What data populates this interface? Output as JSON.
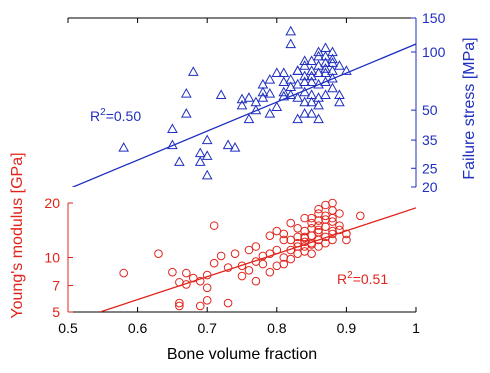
{
  "chart_data": [
    {
      "type": "scatter",
      "name": "failure-stress",
      "xlabel": "",
      "ylabel": "Failure stress [MPa]",
      "xlim": [
        0.5,
        1.0
      ],
      "ylim": [
        20,
        150
      ],
      "yscale": "log",
      "yticks": [
        20,
        25,
        35,
        50,
        100,
        150
      ],
      "axis_side": "right",
      "color": "#1f2fbf",
      "marker": "triangle",
      "annotation": {
        "prefix": "R",
        "sup": "2",
        "suffix": "=0.50"
      },
      "fit": {
        "x": [
          0.5,
          1.0
        ],
        "y": [
          19.5,
          110
        ]
      },
      "points": [
        [
          0.58,
          32
        ],
        [
          0.65,
          33
        ],
        [
          0.65,
          40
        ],
        [
          0.66,
          27
        ],
        [
          0.67,
          61
        ],
        [
          0.67,
          48
        ],
        [
          0.68,
          79
        ],
        [
          0.69,
          30
        ],
        [
          0.69,
          27
        ],
        [
          0.7,
          35
        ],
        [
          0.7,
          23
        ],
        [
          0.7,
          29
        ],
        [
          0.72,
          60
        ],
        [
          0.73,
          33
        ],
        [
          0.74,
          32
        ],
        [
          0.75,
          57
        ],
        [
          0.75,
          53
        ],
        [
          0.76,
          45
        ],
        [
          0.76,
          58
        ],
        [
          0.77,
          50
        ],
        [
          0.77,
          55
        ],
        [
          0.78,
          58
        ],
        [
          0.78,
          62
        ],
        [
          0.78,
          68
        ],
        [
          0.79,
          48
        ],
        [
          0.79,
          61
        ],
        [
          0.79,
          72
        ],
        [
          0.8,
          78
        ],
        [
          0.8,
          52
        ],
        [
          0.81,
          62
        ],
        [
          0.81,
          70
        ],
        [
          0.81,
          59
        ],
        [
          0.81,
          78
        ],
        [
          0.82,
          66
        ],
        [
          0.82,
          72
        ],
        [
          0.82,
          128
        ],
        [
          0.82,
          110
        ],
        [
          0.82,
          60
        ],
        [
          0.83,
          68
        ],
        [
          0.83,
          80
        ],
        [
          0.83,
          45
        ],
        [
          0.83,
          58
        ],
        [
          0.83,
          80
        ],
        [
          0.84,
          90
        ],
        [
          0.84,
          75
        ],
        [
          0.84,
          55
        ],
        [
          0.84,
          70
        ],
        [
          0.84,
          85
        ],
        [
          0.84,
          62
        ],
        [
          0.84,
          48
        ],
        [
          0.85,
          75
        ],
        [
          0.85,
          60
        ],
        [
          0.85,
          55
        ],
        [
          0.85,
          80
        ],
        [
          0.85,
          70
        ],
        [
          0.85,
          48
        ],
        [
          0.85,
          90
        ],
        [
          0.86,
          85
        ],
        [
          0.86,
          100
        ],
        [
          0.86,
          78
        ],
        [
          0.86,
          68
        ],
        [
          0.86,
          58
        ],
        [
          0.86,
          95
        ],
        [
          0.86,
          53
        ],
        [
          0.86,
          45
        ],
        [
          0.87,
          95
        ],
        [
          0.87,
          82
        ],
        [
          0.87,
          70
        ],
        [
          0.87,
          88
        ],
        [
          0.87,
          78
        ],
        [
          0.87,
          105
        ],
        [
          0.87,
          60
        ],
        [
          0.88,
          100
        ],
        [
          0.88,
          80
        ],
        [
          0.88,
          88
        ],
        [
          0.88,
          73
        ],
        [
          0.88,
          92
        ],
        [
          0.88,
          65
        ],
        [
          0.89,
          55
        ],
        [
          0.89,
          85
        ],
        [
          0.89,
          60
        ],
        [
          0.9,
          80
        ]
      ]
    },
    {
      "type": "scatter",
      "name": "youngs-modulus",
      "xlabel": "Bone volume fraction",
      "ylabel": "Young's modulus [GPa]",
      "xlim": [
        0.5,
        1.0
      ],
      "xticks": [
        0.5,
        0.6,
        0.7,
        0.8,
        0.9,
        1
      ],
      "ylim": [
        5,
        20
      ],
      "yscale": "log",
      "yticks": [
        5,
        7,
        10,
        20
      ],
      "axis_side": "left",
      "color": "#e0241c",
      "marker": "circle",
      "annotation": {
        "prefix": "R",
        "sup": "2",
        "suffix": "=0.51"
      },
      "fit": {
        "x": [
          0.546,
          1.0
        ],
        "y": [
          5.0,
          18.8
        ]
      },
      "points": [
        [
          0.58,
          8.2
        ],
        [
          0.63,
          10.5
        ],
        [
          0.65,
          8.3
        ],
        [
          0.66,
          5.6
        ],
        [
          0.66,
          5.4
        ],
        [
          0.66,
          7.3
        ],
        [
          0.67,
          7.1
        ],
        [
          0.67,
          8.2
        ],
        [
          0.68,
          7.7
        ],
        [
          0.69,
          7.4
        ],
        [
          0.69,
          5.4
        ],
        [
          0.7,
          5.8
        ],
        [
          0.7,
          8.0
        ],
        [
          0.7,
          6.8
        ],
        [
          0.71,
          15.0
        ],
        [
          0.71,
          9.3
        ],
        [
          0.72,
          10.2
        ],
        [
          0.73,
          8.8
        ],
        [
          0.73,
          5.6
        ],
        [
          0.74,
          10.5
        ],
        [
          0.75,
          9.0
        ],
        [
          0.75,
          7.9
        ],
        [
          0.76,
          11.0
        ],
        [
          0.76,
          8.5
        ],
        [
          0.77,
          7.4
        ],
        [
          0.77,
          9.5
        ],
        [
          0.77,
          11.5
        ],
        [
          0.78,
          10.2
        ],
        [
          0.78,
          9.2
        ],
        [
          0.79,
          8.3
        ],
        [
          0.79,
          13.2
        ],
        [
          0.79,
          10.5
        ],
        [
          0.8,
          14.0
        ],
        [
          0.8,
          11.0
        ],
        [
          0.8,
          9.0
        ],
        [
          0.81,
          10.0
        ],
        [
          0.81,
          12.5
        ],
        [
          0.81,
          9.2
        ],
        [
          0.81,
          13.5
        ],
        [
          0.82,
          11.0
        ],
        [
          0.82,
          12.5
        ],
        [
          0.82,
          15.5
        ],
        [
          0.82,
          9.8
        ],
        [
          0.83,
          12.0
        ],
        [
          0.83,
          13.0
        ],
        [
          0.83,
          10.5
        ],
        [
          0.83,
          11.5
        ],
        [
          0.83,
          14.5
        ],
        [
          0.84,
          13.0
        ],
        [
          0.84,
          12.2
        ],
        [
          0.84,
          14.0
        ],
        [
          0.84,
          10.8
        ],
        [
          0.84,
          16.5
        ],
        [
          0.84,
          11.5
        ],
        [
          0.84,
          12.8
        ],
        [
          0.85,
          13.2
        ],
        [
          0.85,
          14.5
        ],
        [
          0.85,
          12.0
        ],
        [
          0.85,
          16.5
        ],
        [
          0.85,
          10.5
        ],
        [
          0.85,
          11.8
        ],
        [
          0.85,
          15.5
        ],
        [
          0.86,
          14.2
        ],
        [
          0.86,
          12.5
        ],
        [
          0.86,
          16.0
        ],
        [
          0.86,
          13.8
        ],
        [
          0.86,
          17.5
        ],
        [
          0.86,
          11.5
        ],
        [
          0.86,
          15.0
        ],
        [
          0.86,
          18.5
        ],
        [
          0.87,
          14.8
        ],
        [
          0.87,
          13.0
        ],
        [
          0.87,
          16.2
        ],
        [
          0.87,
          19.5
        ],
        [
          0.87,
          12.0
        ],
        [
          0.87,
          17.0
        ],
        [
          0.88,
          15.8
        ],
        [
          0.88,
          14.0
        ],
        [
          0.88,
          18.2
        ],
        [
          0.88,
          13.5
        ],
        [
          0.88,
          16.5
        ],
        [
          0.88,
          20.0
        ],
        [
          0.88,
          12.5
        ],
        [
          0.89,
          15.0
        ],
        [
          0.89,
          17.5
        ],
        [
          0.89,
          14.2
        ],
        [
          0.9,
          13.5
        ],
        [
          0.9,
          12.5
        ],
        [
          0.92,
          17.0
        ]
      ]
    }
  ]
}
